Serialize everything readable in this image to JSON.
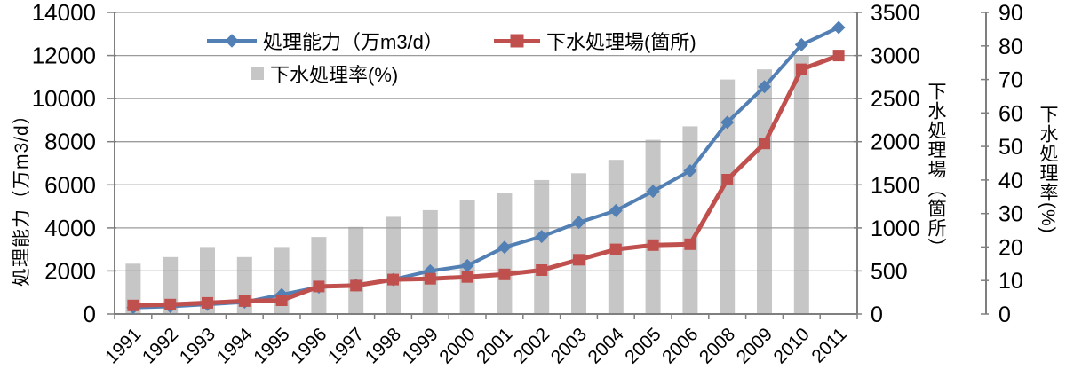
{
  "chart_data": {
    "type": "combo-bar-line",
    "title": "",
    "categories": [
      "1991",
      "1992",
      "1993",
      "1994",
      "1995",
      "1996",
      "1997",
      "1998",
      "1999",
      "2000",
      "2001",
      "2002",
      "2003",
      "2004",
      "2005",
      "2006",
      "2008",
      "2009",
      "2010",
      "2011"
    ],
    "series": [
      {
        "name": "処理能力（万m3/d）",
        "type": "line",
        "marker": "diamond",
        "axis": "left",
        "color": "#5380B4",
        "values": [
          300,
          350,
          450,
          550,
          900,
          1250,
          1350,
          1600,
          2000,
          2250,
          3100,
          3600,
          4250,
          4800,
          5700,
          6650,
          8900,
          10550,
          12500,
          13300
        ]
      },
      {
        "name": "下水処理場(箇所)",
        "type": "line",
        "marker": "square",
        "axis": "right_plants",
        "color": "#C0504D",
        "values": [
          100,
          110,
          130,
          150,
          160,
          320,
          330,
          400,
          410,
          430,
          460,
          510,
          630,
          750,
          800,
          810,
          1560,
          1980,
          2840,
          3000
        ]
      },
      {
        "name": "下水処理率(%)",
        "type": "bar",
        "axis": "right_rate",
        "color": "#C6C6C6",
        "values": [
          15,
          17,
          20,
          17,
          20,
          23,
          26,
          29,
          31,
          34,
          36,
          40,
          42,
          46,
          52,
          56,
          70,
          73,
          77,
          null
        ]
      }
    ],
    "axes": {
      "left": {
        "title": "処理能力（万m3/d）",
        "min": 0,
        "max": 14000,
        "step": 2000,
        "tick_labels": [
          "0",
          "2000",
          "4000",
          "6000",
          "8000",
          "10000",
          "12000",
          "14000"
        ]
      },
      "right_plants": {
        "title": "下水処理場（箇所）",
        "min": 0,
        "max": 3500,
        "step": 500,
        "tick_labels": [
          "0",
          "500",
          "1000",
          "1500",
          "2000",
          "2500",
          "3000",
          "3500"
        ]
      },
      "right_rate": {
        "title": "下水処理率(%)",
        "min": 0,
        "max": 90,
        "step": 10,
        "tick_labels": [
          "0",
          "10",
          "20",
          "30",
          "40",
          "50",
          "60",
          "70",
          "80",
          "90"
        ]
      }
    },
    "legend": {
      "position": "top",
      "items": [
        "処理能力（万m3/d）",
        "下水処理場(箇所)",
        "下水処理率(%)"
      ]
    },
    "grid": true,
    "colors": {
      "gridline": "#9B9B9B",
      "axis_line": "#7F7F7F",
      "bar_fill": "#C6C6C6",
      "line_blue": "#5380B4",
      "line_red": "#C0504D",
      "text": "#000000"
    }
  }
}
